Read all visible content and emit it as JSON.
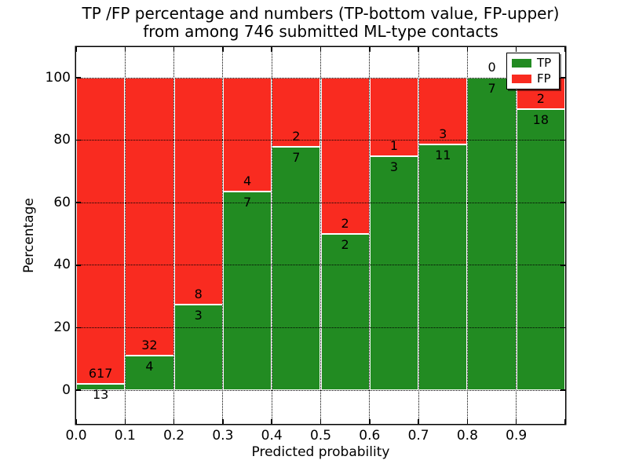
{
  "title": {
    "line1": "TP /FP percentage and numbers (TP-bottom value, FP-upper)",
    "line2": "from among 746 submitted ML-type contacts"
  },
  "chart_data": {
    "type": "bar",
    "stacked": true,
    "normalized_to_percent": true,
    "title": "TP /FP percentage and numbers (TP-bottom value, FP-upper) from among 746 submitted ML-type contacts",
    "xlabel": "Predicted probability",
    "ylabel": "Percentage",
    "categories": [
      "0.0-0.1",
      "0.1-0.2",
      "0.2-0.3",
      "0.3-0.4",
      "0.4-0.5",
      "0.5-0.6",
      "0.6-0.7",
      "0.7-0.8",
      "0.8-0.9",
      "0.9-1.0"
    ],
    "series": [
      {
        "name": "TP",
        "color": "#228b22",
        "counts": [
          13,
          4,
          3,
          7,
          7,
          2,
          3,
          11,
          7,
          18
        ]
      },
      {
        "name": "FP",
        "color": "#f92b20",
        "counts": [
          617,
          32,
          8,
          4,
          2,
          2,
          1,
          3,
          0,
          2
        ]
      }
    ],
    "total_contacts": 746,
    "x_ticks": [
      "0.0",
      "0.1",
      "0.2",
      "0.3",
      "0.4",
      "0.5",
      "0.6",
      "0.7",
      "0.8",
      "0.9"
    ],
    "y_ticks": [
      0,
      20,
      40,
      60,
      80,
      100
    ],
    "xlim": [
      0.0,
      1.0
    ],
    "ylim": [
      -11,
      110
    ],
    "grid": "dotted black, drawn over bars",
    "bar_edge_color": "#ffffff",
    "legend": {
      "position": "upper right",
      "entries": [
        {
          "label": "TP",
          "color": "#228b22"
        },
        {
          "label": "FP",
          "color": "#f92b20"
        }
      ]
    }
  }
}
